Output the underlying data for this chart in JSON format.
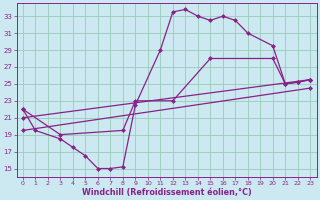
{
  "bg_color": "#cce8f0",
  "line_color": "#882288",
  "grid_color": "#99ccbb",
  "xlabel": "Windchill (Refroidissement éolien,°C)",
  "xlim": [
    -0.5,
    23.5
  ],
  "ylim": [
    14,
    34.5
  ],
  "yticks": [
    15,
    17,
    19,
    21,
    23,
    25,
    27,
    29,
    31,
    33
  ],
  "xticks": [
    0,
    1,
    2,
    3,
    4,
    5,
    6,
    7,
    8,
    9,
    10,
    11,
    12,
    13,
    14,
    15,
    16,
    17,
    18,
    19,
    20,
    21,
    22,
    23
  ],
  "curve1_x": [
    0,
    1,
    3,
    4,
    5,
    6,
    7,
    8,
    9,
    11,
    12,
    13,
    14,
    15,
    16,
    17,
    18,
    20,
    21,
    22,
    23
  ],
  "curve1_y": [
    22,
    19.5,
    18.5,
    17.5,
    16.5,
    15.0,
    15.0,
    15.2,
    22.5,
    29.0,
    33.5,
    33.8,
    33.0,
    32.5,
    33.0,
    32.5,
    31.0,
    29.5,
    25.0,
    25.2,
    25.5
  ],
  "curve2_x": [
    0,
    3,
    8,
    9,
    12,
    15,
    20,
    21,
    22,
    23
  ],
  "curve2_y": [
    22.0,
    19.0,
    19.5,
    23.0,
    23.0,
    28.0,
    28.0,
    25.0,
    25.2,
    25.5
  ],
  "curve3_x": [
    0,
    23
  ],
  "curve3_y": [
    21.0,
    25.5
  ],
  "curve4_x": [
    0,
    23
  ],
  "curve4_y": [
    19.5,
    24.5
  ]
}
